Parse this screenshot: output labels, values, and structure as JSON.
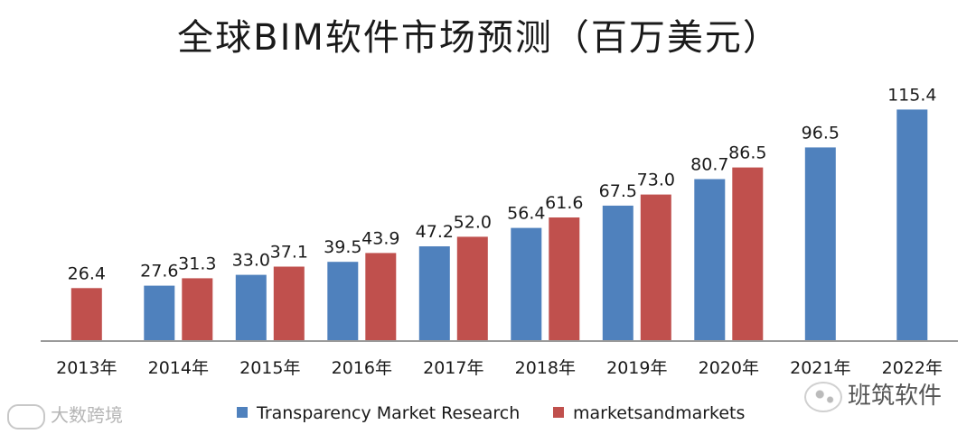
{
  "chart_data": {
    "type": "bar",
    "title": "全球BIM软件市场预测（百万美元）",
    "categories": [
      "2013年",
      "2014年",
      "2015年",
      "2016年",
      "2017年",
      "2018年",
      "2019年",
      "2020年",
      "2021年",
      "2022年"
    ],
    "series": [
      {
        "name": "Transparency Market Research",
        "color": "#4f81bd",
        "values": [
          null,
          27.6,
          33.0,
          39.5,
          47.2,
          56.4,
          67.5,
          80.7,
          96.5,
          115.4
        ],
        "labels": [
          null,
          "27.6",
          "33.0",
          "39.5",
          "47.2",
          "56.4",
          "67.5",
          "80.7",
          "96.5",
          "115.4"
        ]
      },
      {
        "name": "marketsandmarkets",
        "color": "#c0504d",
        "values": [
          26.4,
          31.3,
          37.1,
          43.9,
          52.0,
          61.6,
          73.0,
          86.5,
          null,
          null
        ],
        "labels": [
          "26.4",
          "31.3",
          "37.1",
          "43.9",
          "52.0",
          "61.6",
          "73.0",
          "86.5",
          null,
          null
        ]
      }
    ],
    "ylim": [
      0,
      125
    ],
    "grid": false,
    "legend": "bottom"
  },
  "watermarks": {
    "left": "大数跨境",
    "right": "班筑软件"
  }
}
